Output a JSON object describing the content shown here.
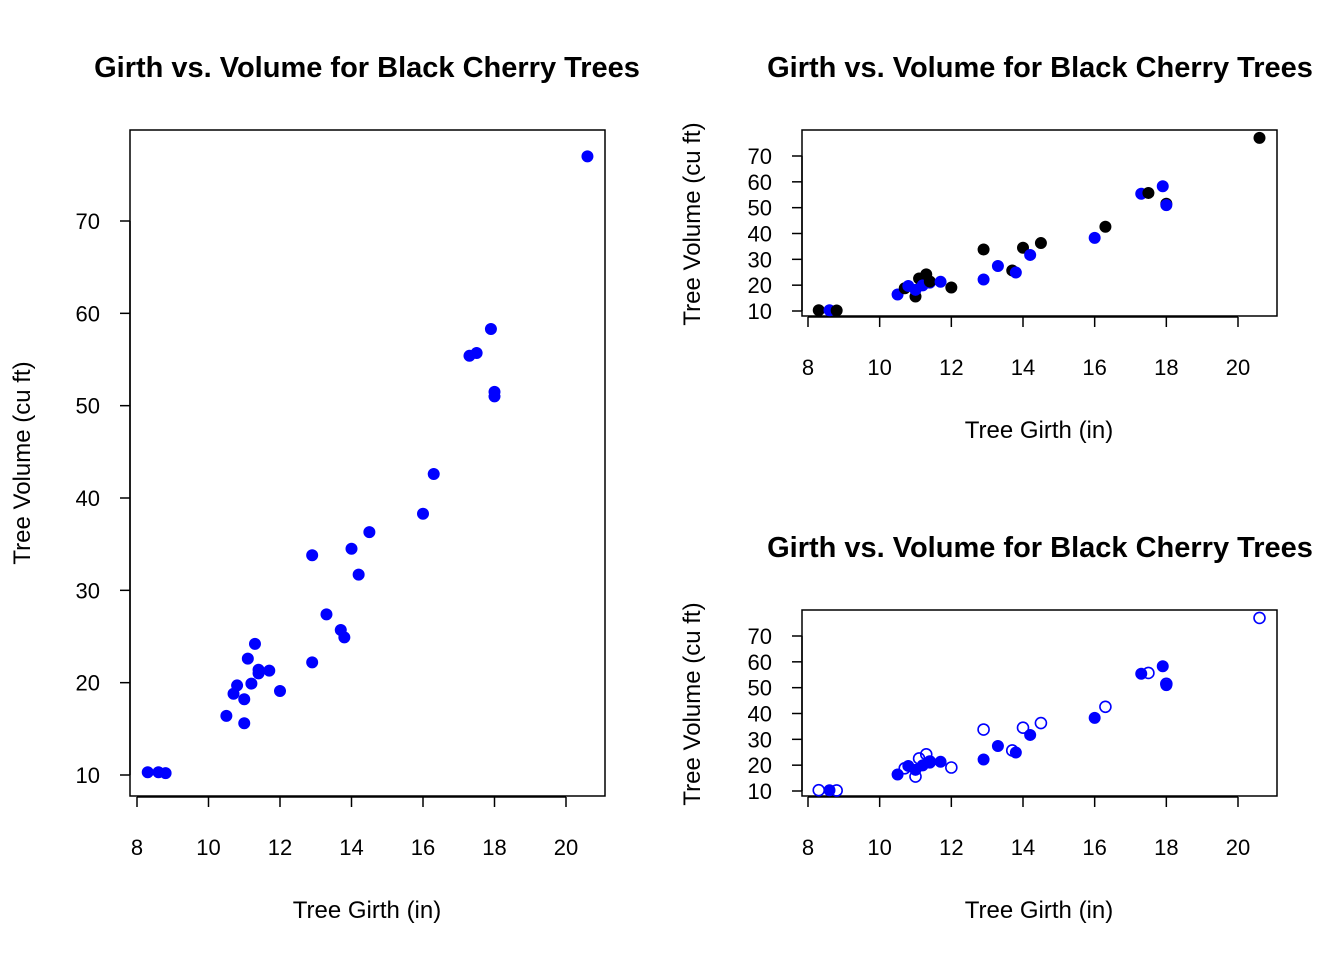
{
  "colors": {
    "blue": "#0000ff",
    "black": "#000000"
  },
  "chart_data": [
    {
      "type": "scatter",
      "title": "Girth vs. Volume for Black Cherry Trees",
      "xlabel": "Tree Girth (in)",
      "ylabel": "Tree Volume (cu ft)",
      "xlim": [
        8,
        21
      ],
      "ylim": [
        10,
        80
      ],
      "xticks": [
        "8",
        "10",
        "12",
        "14",
        "16",
        "18",
        "20"
      ],
      "yticks": [
        "10",
        "20",
        "30",
        "40",
        "50",
        "60",
        "70"
      ],
      "style": "all-filled-blue",
      "grid": false
    },
    {
      "type": "scatter",
      "title": "Girth vs. Volume for Black Cherry Trees",
      "xlabel": "Tree Girth (in)",
      "ylabel": "Tree Volume (cu ft)",
      "xlim": [
        8,
        21
      ],
      "ylim": [
        10,
        80
      ],
      "xticks": [
        "8",
        "10",
        "12",
        "14",
        "16",
        "18",
        "20"
      ],
      "yticks": [
        "10",
        "20",
        "30",
        "40",
        "50",
        "60",
        "70"
      ],
      "style": "alternating-blue-black-filled",
      "grid": false
    },
    {
      "type": "scatter",
      "title": "Girth vs. Volume for Black Cherry Trees",
      "xlabel": "Tree Girth (in)",
      "ylabel": "Tree Volume (cu ft)",
      "xlim": [
        8,
        21
      ],
      "ylim": [
        10,
        80
      ],
      "xticks": [
        "8",
        "10",
        "12",
        "14",
        "16",
        "18",
        "20"
      ],
      "yticks": [
        "10",
        "20",
        "30",
        "40",
        "50",
        "60",
        "70"
      ],
      "style": "alternating-blue-open-filled",
      "grid": false
    }
  ],
  "points": {
    "x": [
      8.3,
      8.6,
      8.8,
      10.5,
      10.7,
      10.8,
      11.0,
      11.0,
      11.1,
      11.2,
      11.3,
      11.4,
      11.4,
      11.7,
      12.0,
      12.9,
      12.9,
      13.3,
      13.7,
      13.8,
      14.0,
      14.2,
      14.5,
      16.0,
      16.3,
      17.3,
      17.5,
      17.9,
      18.0,
      18.0,
      20.6
    ],
    "y": [
      10.3,
      10.3,
      10.2,
      16.4,
      18.8,
      19.7,
      15.6,
      18.2,
      22.6,
      19.9,
      24.2,
      21.0,
      21.4,
      21.3,
      19.1,
      22.2,
      33.8,
      27.4,
      25.7,
      24.9,
      34.5,
      31.7,
      36.3,
      38.3,
      42.6,
      55.4,
      55.7,
      58.3,
      51.5,
      51.0,
      77.0
    ]
  }
}
